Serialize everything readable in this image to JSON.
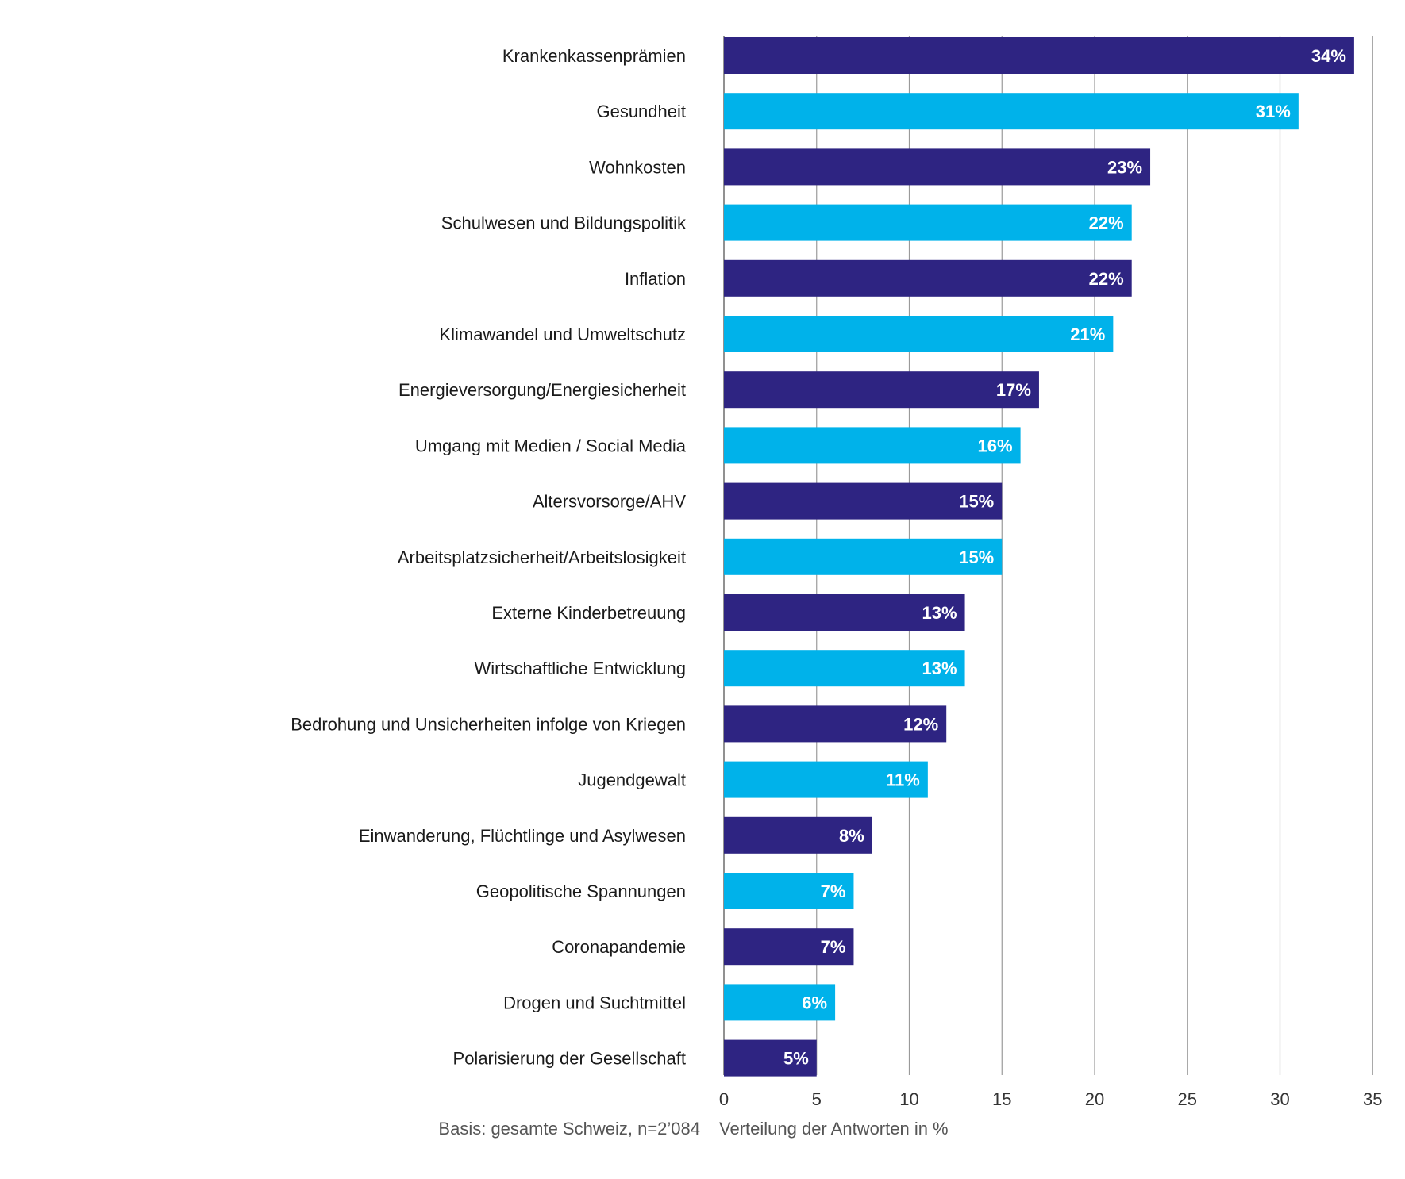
{
  "chart_data": {
    "type": "bar",
    "orientation": "horizontal",
    "categories": [
      "Krankenkassenprämien",
      "Gesundheit",
      "Wohnkosten",
      "Schulwesen und Bildungspolitik",
      "Inflation",
      "Klimawandel und Umweltschutz",
      "Energieversorgung/Energiesicherheit",
      "Umgang mit Medien / Social Media",
      "Altersvorsorge/AHV",
      "Arbeitsplatzsicherheit/Arbeitslosigkeit",
      "Externe Kinderbetreuung",
      "Wirtschaftliche Entwicklung",
      "Bedrohung und Unsicherheiten infolge von Kriegen",
      "Jugendgewalt",
      "Einwanderung, Flüchtlinge und Asylwesen",
      "Geopolitische Spannungen",
      "Coronapandemie",
      "Drogen und Suchtmittel",
      "Polarisierung der Gesellschaft"
    ],
    "values": [
      34,
      31,
      23,
      22,
      22,
      21,
      17,
      16,
      15,
      15,
      13,
      13,
      12,
      11,
      8,
      7,
      7,
      6,
      5
    ],
    "data_labels": [
      "34%",
      "31%",
      "23%",
      "22%",
      "22%",
      "21%",
      "17%",
      "16%",
      "15%",
      "15%",
      "13%",
      "13%",
      "12%",
      "11%",
      "8%",
      "7%",
      "7%",
      "6%",
      "5%"
    ],
    "xlim": [
      0,
      35
    ],
    "xticks": [
      0,
      5,
      10,
      15,
      20,
      25,
      30,
      35
    ],
    "xlabel": "Verteilung der Antworten in %",
    "grid": true,
    "colors": [
      "#2e2482",
      "#00b2ea"
    ]
  },
  "footnote": "Basis: gesamte Schweiz, n=2’084"
}
